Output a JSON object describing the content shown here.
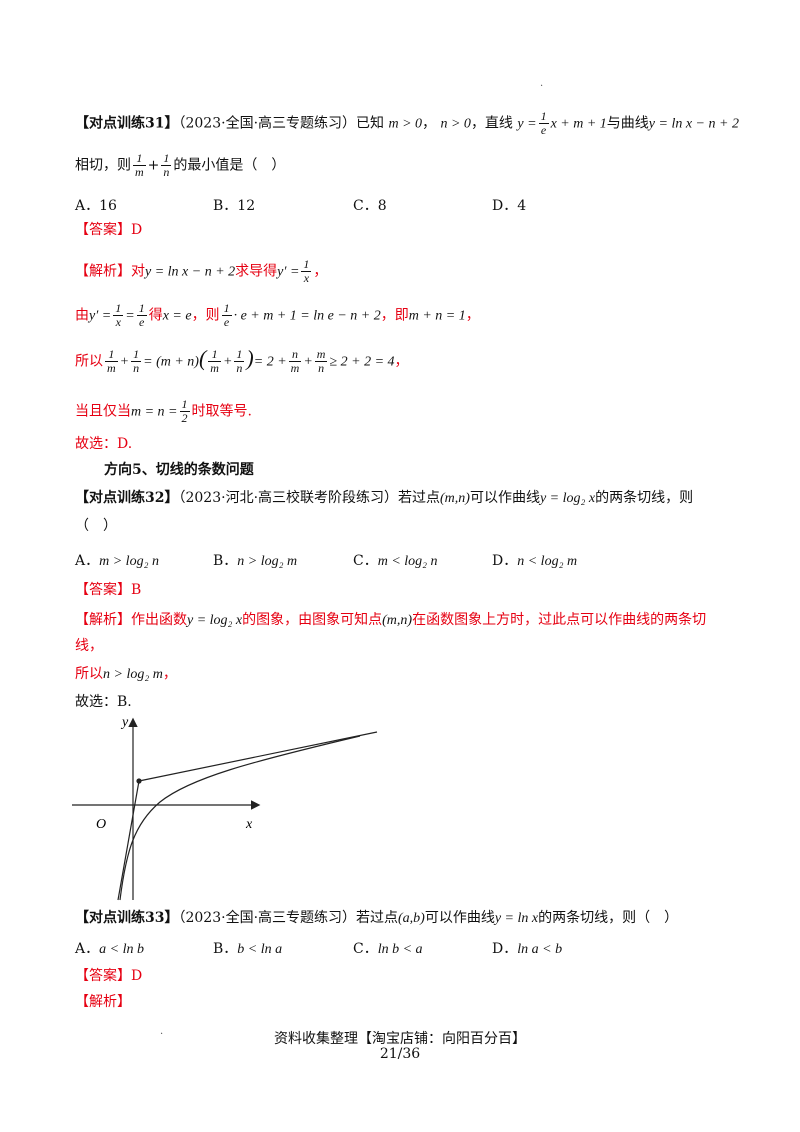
{
  "q31": {
    "tag": "【对点训练31】",
    "source": "（2023·全国·高三专题练习）已知",
    "cond_m": "m > 0",
    "cond_n": "n > 0",
    "sep": "，",
    "line_word": "，直线",
    "line_expr_pre": "y =",
    "line_expr_frac_num": "1",
    "line_expr_frac_den": "e",
    "line_expr_post": "x + m + 1",
    "curve_word": "与曲线",
    "curve_expr": "y = ln x − n + 2",
    "line2_pre": "相切，则",
    "line2_frac1_num": "1",
    "line2_frac1_den": "m",
    "line2_plus": "+",
    "line2_frac2_num": "1",
    "line2_frac2_den": "n",
    "line2_post": "的最小值是（　）",
    "options": [
      "A．16",
      "B．12",
      "C．8",
      "D．4"
    ],
    "answer": "【答案】D",
    "analysis_tag": "【解析】",
    "a1_pre": "对",
    "a1_expr": "y = ln x − n + 2",
    "a1_mid": "求导得",
    "a1_deriv": "y′ =",
    "a1_frac_num": "1",
    "a1_frac_den": "x",
    "a1_end": "，",
    "a2_pre": "由",
    "a2_e1": "y′ =",
    "a2_f1n": "1",
    "a2_f1d": "x",
    "a2_eq": "=",
    "a2_f2n": "1",
    "a2_f2d": "e",
    "a2_de": "得",
    "a2_x": "x = e",
    "a2_then": "，则",
    "a2_f3n": "1",
    "a2_f3d": "e",
    "a2_rest": "· e + m + 1 = ln e − n + 2",
    "a2_ji": "，即",
    "a2_res": "m + n = 1",
    "a2_end": "，",
    "a3_pre": "所以",
    "a3_expr1": "= (m + n)",
    "a3_expr2": "= 2 +",
    "a3_expr3": "≥ 2 + 2 = 4",
    "a3_end": "，",
    "a4_pre": "当且仅当",
    "a4_expr": "m = n =",
    "a4_fn": "1",
    "a4_fd": "2",
    "a4_post": "时取等号.",
    "choose": "故选：D."
  },
  "dir5": "方向5、切线的条数问题",
  "q32": {
    "tag": "【对点训练32】",
    "source": "（2023·河北·高三校联考阶段练习）若过点",
    "point": "(m,n)",
    "mid": "可以作曲线",
    "curve": "y = log₂ x",
    "post": "的两条切线，则",
    "blank": "（　）",
    "options": [
      "A．",
      "B．",
      "C．",
      "D．"
    ],
    "option_exprs": [
      "m > log₂ n",
      "n > log₂ m",
      "m < log₂ n",
      "n < log₂ m"
    ],
    "answer": "【答案】B",
    "analysis_tag": "【解析】",
    "a1_pre": "作出函数",
    "a1_curve": "y = log₂ x",
    "a1_mid": "的图象，由图象可知点",
    "a1_point": "(m,n)",
    "a1_post": "在函数图象上方时，过此点可以作曲线的两条切",
    "a2": "线，",
    "a3_pre": "所以",
    "a3_expr": "n > log₂ m",
    "a3_end": "，",
    "choose": "故选：B."
  },
  "graph": {
    "y_label": "y",
    "x_label": "x",
    "origin": "O"
  },
  "q33": {
    "tag": "【对点训练33】",
    "source": "（2023·全国·高三专题练习）若过点",
    "point": "(a,b)",
    "mid": "可以作曲线",
    "curve": "y = ln x",
    "post": "的两条切线，则（　）",
    "options": [
      "A．",
      "B．",
      "C．",
      "D．"
    ],
    "option_exprs": [
      "a < ln b",
      "b < ln a",
      "ln b < a",
      "ln a < b"
    ],
    "answer": "【答案】D",
    "analysis_tag": "【解析】"
  },
  "footer": {
    "line1": "资料收集整理【淘宝店铺：向阳百分百】",
    "page": "21/36"
  }
}
